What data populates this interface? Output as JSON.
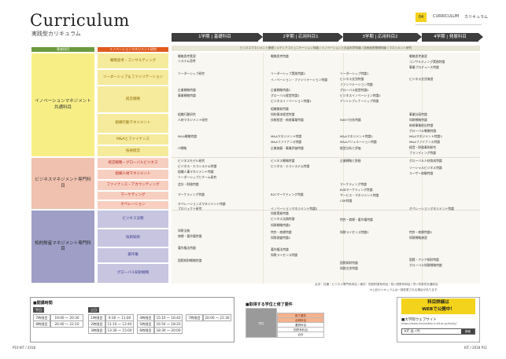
{
  "header": {
    "title": "Curriculum",
    "subtitle": "実践型カリキュラム",
    "page_badge": "04",
    "section_label": "CURRICULUM",
    "section_label_jp": "カリキュラム"
  },
  "terms": [
    "1学期 | 基礎科目",
    "2学期 | 応用科目1",
    "3学期 | 応用科目2",
    "4学期 | 発展科目"
  ],
  "col_headers": {
    "left": "専攻科目",
    "mid": "イノベーションマネジメント研究"
  },
  "banner": "ビジネスマネジメント基礎 / メディアコミュニケーション特論 / イノベーションと社会科学特論 / 技術経営基礎特論 / マネジメント研究",
  "categories": {
    "c1": "イノベーションマネジメント\n共通科目",
    "c2": "ビジネスマネジメント専門科目",
    "c3": "知的財産マネジメント専門科目"
  },
  "subcats": [
    "戦略思考・コンサルティング",
    "リーダーシップ＆ファシリテーション",
    "経営戦略",
    "組織行動マネジメント",
    "M&Aとファイナンス",
    "技術経営",
    "経営戦略・グローバルビジネス",
    "組織人材マネジメント",
    "ファイナンス・アカウンティング",
    "マーケティング",
    "オペレーション",
    "ビジネス法務",
    "技術知財",
    "著作権",
    "グローバル知財戦略"
  ],
  "courses": {
    "col1": [
      "戦略思考実習",
      "システム思考",
      "リーダーシップ研究",
      "企業戦略特論",
      "事業戦略特論",
      "組織行動研究",
      "人材マネジメント研究",
      "M&A戦略特論",
      "IT戦略",
      "ビジネスモデル研究",
      "ビジネス・エコシステム特論",
      "組織人事マネジメント特論",
      "リーダーシップとチーム研究",
      "会計・財務特論",
      "マーケティング特論",
      "オペレーションズマネジメント特論",
      "プロジェクト研究",
      "知財法務",
      "商標・著作権特論",
      "著作権法特論",
      "国際知財戦略特論"
    ],
    "col2": [
      "戦略思考特論",
      "リーダーシップ実践特論1",
      "イノベーション・ファシリテーション特論",
      "企業戦略特論1",
      "グローバル経営特論1",
      "ビジネスイノベーション特論1",
      "組織開発特論",
      "知的資本経営特論",
      "技術経営・新規事業特論",
      "M&Aマネジメント特論",
      "M&Aファイナンス特論",
      "企業価値・事業評価特論",
      "ビジネス戦略特論",
      "ビジネス・エコシステム特論",
      "B2Cマーケティング特論",
      "イノベーションマネジメント特論2",
      "知財実務特論",
      "ビジネス法務特論",
      "知財戦略特論2",
      "特許・商標特論",
      "知財調査特論1",
      "著作権法特論",
      "知財ライセンス特論"
    ],
    "col3": [
      "リーダーシップ特論1",
      "ビジネス交渉特論",
      "ファシリテーション特論",
      "グローバル経営特論2",
      "ビジネスイノベーション特論2",
      "アントレプレナーシップ特論",
      "SWOT分析特論",
      "M&Aマネジメント特論2",
      "M&Aバリュエーション特論",
      "経営分析と評価",
      "企業戦略と財務",
      "マーケティング特論",
      "B2Bマーケティング特論",
      "サービス・マネジメント特論",
      "CSR特論",
      "特許・商標・著作権特論",
      "知財ライセンス特論2",
      "国際知財特論",
      "知財交渉特論"
    ],
    "col4": [
      "戦略思考演習",
      "コンサルティング実務特論",
      "事業プロデュース特論",
      "ビジネス交渉演習",
      "事業計画特論",
      "知財戦略特論",
      "新規事業創出特論",
      "グローバル戦略特論",
      "M&Aマネジメント特論3",
      "M&Aファイナンス特論",
      "経営・財務事例研究",
      "ブランディング特論",
      "グローバル人材育成特論",
      "ソーシャルビジネス特論",
      "ユーザー体験特論",
      "オペレーションマネジメント特論",
      "特許・商標特論2",
      "知財戦略演習",
      "国際・アジア知財特論",
      "グローバル知財戦略特論"
    ]
  },
  "notes": {
    "n1": "太字：共通・ビジネス専門系科目 / 細字：知的財産系科目 / 知=知財系科目 / 学=学部内共通科目",
    "n2": "※上記カリキュラムは一部変更される場合があります"
  },
  "schedule": {
    "title": "■開講時間",
    "weekday_tag": "平日",
    "weekend_tag": "土日",
    "weekday_rows": [
      {
        "label": "7時限目",
        "time": "19:00 〜 20:30"
      },
      {
        "label": "8時限目",
        "time": "20:40 〜 22:10"
      }
    ],
    "weekend_rows": [
      {
        "label": "1時限目",
        "time": "9:30 〜 11:00"
      },
      {
        "label": "2時限目",
        "time": "11:10 〜 12:40"
      },
      {
        "label": "3時限目",
        "time": "13:30 〜 15:00"
      },
      {
        "label": "4時限目",
        "time": "15:10 〜 16:40"
      },
      {
        "label": "5時限目",
        "time": "16:50 〜 18:20"
      },
      {
        "label": "6時限目",
        "time": "18:30 〜 20:00"
      },
      {
        "label": "7時限目",
        "time": "20:00 〜 21:30"
      }
    ]
  },
  "modules": {
    "title": "■取得する学位と修了要件",
    "rows": [
      "学位",
      "修了要件",
      "必修科目",
      "選択科目",
      "知財系科目",
      "合計"
    ]
  },
  "web": {
    "headline1": "科目詳細は",
    "headline2": "WEBで公開中！",
    "link": "■大学院ウェブサイト",
    "url": "https://www.innovation.k.kit.ac.jp/study/",
    "search": "KIT 虎ノ門",
    "search_btn": "検索"
  },
  "footer": {
    "left": "P10 KIT / 2018",
    "right": "KIT / 2018 P11"
  }
}
